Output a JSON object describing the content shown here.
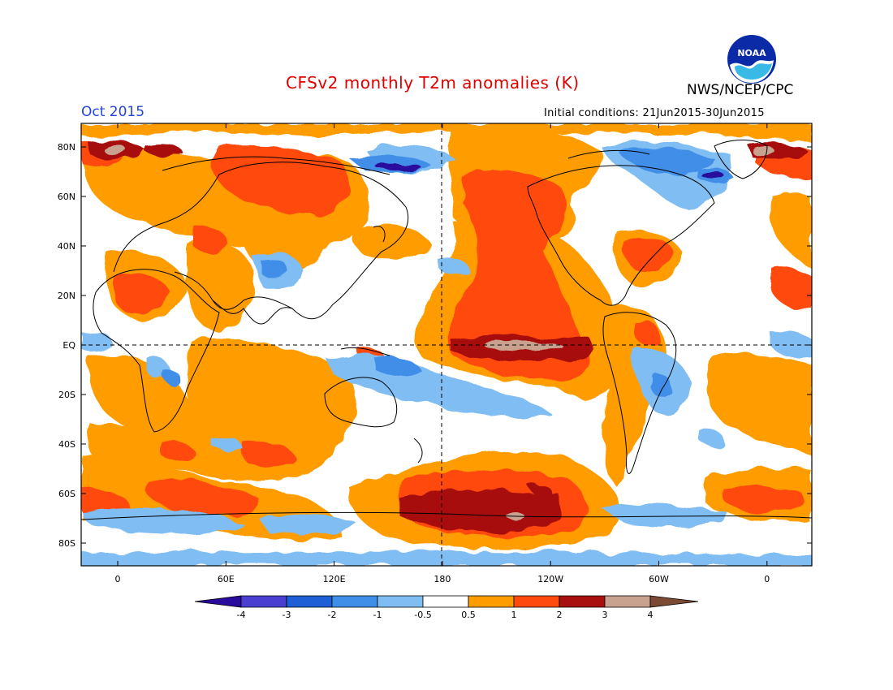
{
  "title": "CFSv2 monthly T2m anomalies (K)",
  "agency": "NWS/NCEP/CPC",
  "logo_text": "NOAA",
  "valid_month": "Oct 2015",
  "initial_conditions": "Initial conditions: 21Jun2015-30Jun2015",
  "colors": {
    "title": "#e00000",
    "month": "#2244dd"
  },
  "lat_labels": [
    "80N",
    "60N",
    "40N",
    "20N",
    "EQ",
    "20S",
    "40S",
    "60S",
    "80S"
  ],
  "lon_labels": [
    "0",
    "60E",
    "120E",
    "180",
    "120W",
    "60W",
    "0"
  ],
  "colorbar": {
    "tick_labels": [
      "-4",
      "-3",
      "-2",
      "-1",
      "-0.5",
      "0.5",
      "1",
      "2",
      "3",
      "4"
    ],
    "colors": [
      "#2a0c9c",
      "#4a3fd0",
      "#1f5fd6",
      "#3f8ee8",
      "#7fbdf2",
      "#ffffff",
      "#ff9d00",
      "#ff4a0f",
      "#a80f0f",
      "#c9a28f",
      "#7a4a35"
    ]
  }
}
